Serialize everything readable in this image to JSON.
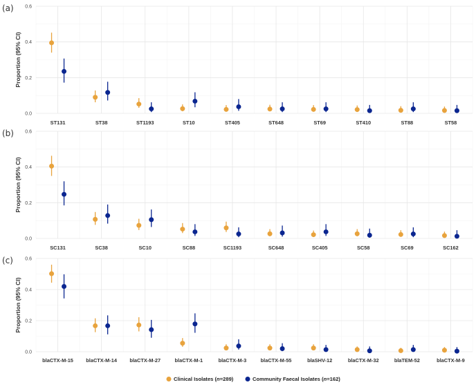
{
  "chart_data": [
    {
      "type": "scatter",
      "panel_label": "(a)",
      "ylabel": "Proportion (95% CI)",
      "ylim": [
        0,
        0.6
      ],
      "yticks": [
        "0.0",
        "0.2",
        "0.4",
        "0.6"
      ],
      "categories": [
        "ST131",
        "ST38",
        "ST1193",
        "ST10",
        "ST405",
        "ST648",
        "ST69",
        "ST410",
        "ST88",
        "ST58"
      ],
      "series": [
        {
          "name": "Clinical Isolates (n=289)",
          "color": "#E8A33D",
          "values": [
            0.395,
            0.09,
            0.052,
            0.026,
            0.022,
            0.024,
            0.022,
            0.021,
            0.017,
            0.016
          ],
          "ci_low": [
            0.34,
            0.062,
            0.031,
            0.012,
            0.01,
            0.012,
            0.01,
            0.01,
            0.007,
            0.006
          ],
          "ci_high": [
            0.452,
            0.128,
            0.085,
            0.05,
            0.046,
            0.048,
            0.046,
            0.044,
            0.04,
            0.038
          ]
        },
        {
          "name": "Community Faecal Isolates (n=162)",
          "color": "#0B2690",
          "values": [
            0.235,
            0.117,
            0.025,
            0.068,
            0.037,
            0.025,
            0.025,
            0.015,
            0.025,
            0.015
          ],
          "ci_low": [
            0.172,
            0.072,
            0.007,
            0.034,
            0.014,
            0.007,
            0.007,
            0.002,
            0.007,
            0.002
          ],
          "ci_high": [
            0.307,
            0.177,
            0.062,
            0.118,
            0.08,
            0.062,
            0.062,
            0.047,
            0.062,
            0.047
          ]
        }
      ]
    },
    {
      "type": "scatter",
      "panel_label": "(b)",
      "ylabel": "Proportion (95% CI)",
      "ylim": [
        0,
        0.6
      ],
      "yticks": [
        "0.0",
        "0.2",
        "0.4",
        "0.6"
      ],
      "categories": [
        "SC131",
        "SC38",
        "SC10",
        "SC88",
        "SC1193",
        "SC648",
        "SC405",
        "SC58",
        "SC69",
        "SC162"
      ],
      "series": [
        {
          "name": "Clinical Isolates (n=289)",
          "color": "#E8A33D",
          "values": [
            0.405,
            0.107,
            0.073,
            0.052,
            0.059,
            0.026,
            0.021,
            0.026,
            0.022,
            0.016
          ],
          "ci_low": [
            0.35,
            0.076,
            0.047,
            0.03,
            0.036,
            0.012,
            0.009,
            0.012,
            0.01,
            0.006
          ],
          "ci_high": [
            0.463,
            0.148,
            0.11,
            0.086,
            0.094,
            0.052,
            0.044,
            0.052,
            0.046,
            0.038
          ]
        },
        {
          "name": "Community Faecal Isolates (n=162)",
          "color": "#0B2690",
          "values": [
            0.247,
            0.128,
            0.105,
            0.037,
            0.025,
            0.031,
            0.037,
            0.018,
            0.025,
            0.012
          ],
          "ci_low": [
            0.185,
            0.083,
            0.064,
            0.014,
            0.007,
            0.01,
            0.014,
            0.004,
            0.007,
            0.002
          ],
          "ci_high": [
            0.32,
            0.19,
            0.162,
            0.08,
            0.062,
            0.072,
            0.08,
            0.055,
            0.062,
            0.046
          ]
        }
      ]
    },
    {
      "type": "scatter",
      "panel_label": "(c)",
      "ylabel": "Proportion (95% CI)",
      "ylim": [
        0,
        0.6
      ],
      "yticks": [
        "0.0",
        "0.2",
        "0.4",
        "0.6"
      ],
      "categories": [
        "blaCTX-M-15",
        "blaCTX-M-14",
        "blaCTX-M-27",
        "blaCTX-M-1",
        "blaCTX-M-3",
        "blaCTX-M-55",
        "blaSHV-12",
        "blaCTX-M-32",
        "blaTEM-52",
        "blaCTX-M-9"
      ],
      "series": [
        {
          "name": "Clinical Isolates (n=289)",
          "color": "#E8A33D",
          "values": [
            0.502,
            0.167,
            0.172,
            0.055,
            0.024,
            0.024,
            0.024,
            0.014,
            0.007,
            0.01
          ],
          "ci_low": [
            0.444,
            0.126,
            0.131,
            0.032,
            0.011,
            0.011,
            0.011,
            0.005,
            0.001,
            0.002
          ],
          "ci_high": [
            0.56,
            0.215,
            0.222,
            0.088,
            0.048,
            0.048,
            0.048,
            0.034,
            0.025,
            0.03
          ]
        },
        {
          "name": "Community Faecal Isolates (n=162)",
          "color": "#0B2690",
          "values": [
            0.42,
            0.167,
            0.142,
            0.179,
            0.037,
            0.02,
            0.014,
            0.006,
            0.014,
            0.004
          ],
          "ci_low": [
            0.343,
            0.112,
            0.09,
            0.122,
            0.014,
            0.004,
            0.002,
            0.0,
            0.002,
            0.0
          ],
          "ci_high": [
            0.498,
            0.234,
            0.205,
            0.247,
            0.08,
            0.055,
            0.044,
            0.034,
            0.044,
            0.03
          ]
        }
      ]
    }
  ],
  "legend": {
    "items": [
      {
        "label": "Clinical Isolates",
        "n_prefix": " (",
        "n_italic": "n",
        "n_value": "=289)",
        "color": "#E8A33D"
      },
      {
        "label": "Community Faecal Isolates",
        "n_prefix": " (",
        "n_italic": "n",
        "n_value": "=162)",
        "color": "#0B2690"
      }
    ]
  }
}
